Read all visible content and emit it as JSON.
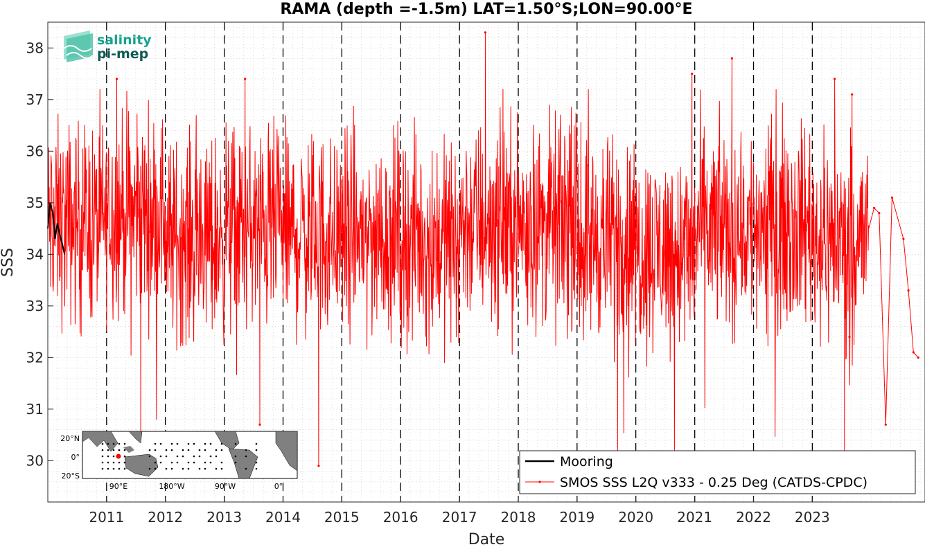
{
  "chart_data": {
    "type": "line",
    "title": "RAMA (depth =-1.5m) LAT=1.50°S;LON=90.00°E",
    "xlabel": "Date",
    "ylabel": "SSS",
    "xlim": [
      "2010-01-01",
      "2024-12-01"
    ],
    "ylim": [
      29.2,
      38.5
    ],
    "x_ticks": [
      "2011",
      "2012",
      "2013",
      "2014",
      "2015",
      "2016",
      "2017",
      "2018",
      "2019",
      "2020",
      "2021",
      "2022",
      "2023"
    ],
    "y_ticks": [
      30,
      31,
      32,
      33,
      34,
      35,
      36,
      37,
      38
    ],
    "grid": "minor dotted",
    "year_boundaries": "dashed vertical lines",
    "legend_position": "bottom-right",
    "series": [
      {
        "name": "Mooring",
        "color": "#000000",
        "style": "line",
        "points": [
          [
            "2010-01-01",
            34.5
          ],
          [
            "2010-01-15",
            35.0
          ],
          [
            "2010-02-01",
            34.8
          ],
          [
            "2010-02-15",
            34.3
          ],
          [
            "2010-03-01",
            34.6
          ],
          [
            "2010-03-15",
            34.4
          ],
          [
            "2010-04-01",
            34.2
          ],
          [
            "2010-04-15",
            34.0
          ]
        ]
      },
      {
        "name": "SMOS SSS L2Q v333 - 0.25 Deg (CATDS-CPDC)",
        "color": "#ff0000",
        "style": "line with dot markers",
        "mean_band": [
          [
            "2010",
            34.6
          ],
          [
            "2011",
            34.8
          ],
          [
            "2012",
            34.3
          ],
          [
            "2013",
            34.5
          ],
          [
            "2014",
            34.4
          ],
          [
            "2015",
            34.4
          ],
          [
            "2016",
            34.3
          ],
          [
            "2017",
            34.6
          ],
          [
            "2018",
            34.6
          ],
          [
            "2019",
            34.3
          ],
          [
            "2020",
            34.1
          ],
          [
            "2021",
            34.5
          ],
          [
            "2022",
            34.6
          ],
          [
            "2023",
            34.3
          ]
        ],
        "notable_points": [
          [
            "2011-03-05",
            37.4
          ],
          [
            "2011-08-01",
            30.4
          ],
          [
            "2013-05-10",
            37.4
          ],
          [
            "2013-08-10",
            30.7
          ],
          [
            "2014-08-10",
            29.9
          ],
          [
            "2017-06-10",
            38.3
          ],
          [
            "2019-09-10",
            30.1
          ],
          [
            "2020-12-15",
            37.5
          ],
          [
            "2021-08-20",
            37.8
          ],
          [
            "2023-05-20",
            37.4
          ],
          [
            "2023-07-20",
            30.1
          ],
          [
            "2023-09-05",
            37.1
          ],
          [
            "2023-08-20",
            32.4
          ],
          [
            "2024-01-20",
            34.9
          ],
          [
            "2024-02-20",
            34.8
          ],
          [
            "2024-04-01",
            30.7
          ],
          [
            "2024-05-10",
            35.1
          ],
          [
            "2024-07-20",
            34.3
          ],
          [
            "2024-08-20",
            33.3
          ],
          [
            "2024-09-20",
            32.1
          ],
          [
            "2024-10-20",
            32.0
          ]
        ]
      }
    ]
  },
  "inset_map": {
    "y_labels": [
      "20°N",
      "0°",
      "20°S"
    ],
    "x_labels": [
      "90°E",
      "180°W",
      "90°W",
      "0°"
    ],
    "marker_color": "#ff0000"
  },
  "logo": {
    "line1": "salinity",
    "line2": "pi-mep",
    "color1": "#1aa38c",
    "color2": "#0e5a55"
  },
  "colors": {
    "background": "#ffffff",
    "series_red": "#ff0000",
    "mooring_black": "#000000",
    "land_gray": "#808080"
  }
}
